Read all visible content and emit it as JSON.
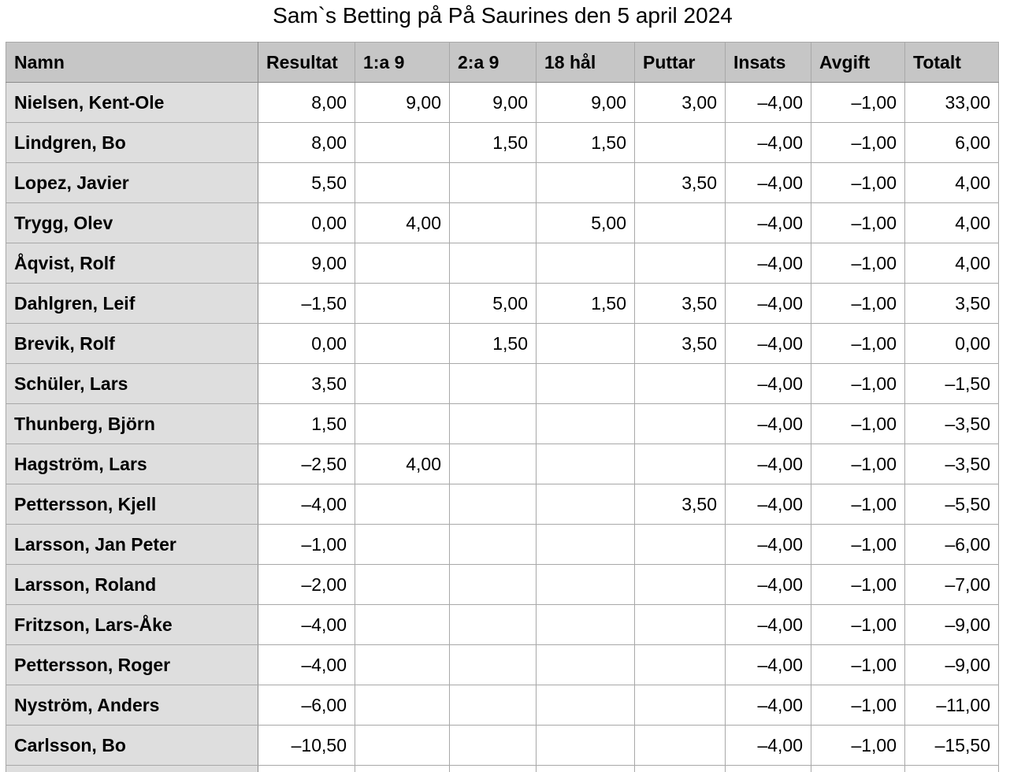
{
  "title": "Sam`s Betting på På Saurines den 5 april 2024",
  "table": {
    "headers": [
      "Namn",
      "Resultat",
      "1:a 9",
      "2:a 9",
      "18 hål",
      "Puttar",
      "Insats",
      "Avgift",
      "Totalt"
    ],
    "rows": [
      [
        "Nielsen, Kent-Ole",
        "8,00",
        "9,00",
        "9,00",
        "9,00",
        "3,00",
        "–4,00",
        "–1,00",
        "33,00"
      ],
      [
        "Lindgren, Bo",
        "8,00",
        "",
        "1,50",
        "1,50",
        "",
        "–4,00",
        "–1,00",
        "6,00"
      ],
      [
        "Lopez, Javier",
        "5,50",
        "",
        "",
        "",
        "3,50",
        "–4,00",
        "–1,00",
        "4,00"
      ],
      [
        "Trygg, Olev",
        "0,00",
        "4,00",
        "",
        "5,00",
        "",
        "–4,00",
        "–1,00",
        "4,00"
      ],
      [
        "Åqvist, Rolf",
        "9,00",
        "",
        "",
        "",
        "",
        "–4,00",
        "–1,00",
        "4,00"
      ],
      [
        "Dahlgren, Leif",
        "–1,50",
        "",
        "5,00",
        "1,50",
        "3,50",
        "–4,00",
        "–1,00",
        "3,50"
      ],
      [
        "Brevik, Rolf",
        "0,00",
        "",
        "1,50",
        "",
        "3,50",
        "–4,00",
        "–1,00",
        "0,00"
      ],
      [
        "Schüler, Lars",
        "3,50",
        "",
        "",
        "",
        "",
        "–4,00",
        "–1,00",
        "–1,50"
      ],
      [
        "Thunberg, Björn",
        "1,50",
        "",
        "",
        "",
        "",
        "–4,00",
        "–1,00",
        "–3,50"
      ],
      [
        "Hagström, Lars",
        "–2,50",
        "4,00",
        "",
        "",
        "",
        "–4,00",
        "–1,00",
        "–3,50"
      ],
      [
        "Pettersson, Kjell",
        "–4,00",
        "",
        "",
        "",
        "3,50",
        "–4,00",
        "–1,00",
        "–5,50"
      ],
      [
        "Larsson, Jan Peter",
        "–1,00",
        "",
        "",
        "",
        "",
        "–4,00",
        "–1,00",
        "–6,00"
      ],
      [
        "Larsson, Roland",
        "–2,00",
        "",
        "",
        "",
        "",
        "–4,00",
        "–1,00",
        "–7,00"
      ],
      [
        "Fritzson, Lars-Åke",
        "–4,00",
        "",
        "",
        "",
        "",
        "–4,00",
        "–1,00",
        "–9,00"
      ],
      [
        "Pettersson, Roger",
        "–4,00",
        "",
        "",
        "",
        "",
        "–4,00",
        "–1,00",
        "–9,00"
      ],
      [
        "Nyström, Anders",
        "–6,00",
        "",
        "",
        "",
        "",
        "–4,00",
        "–1,00",
        "–11,00"
      ],
      [
        "Carlsson, Bo",
        "–10,50",
        "",
        "",
        "",
        "",
        "–4,00",
        "–1,00",
        "–15,50"
      ],
      [
        "",
        "",
        "",
        "",
        "",
        "",
        "",
        "",
        ""
      ]
    ]
  }
}
